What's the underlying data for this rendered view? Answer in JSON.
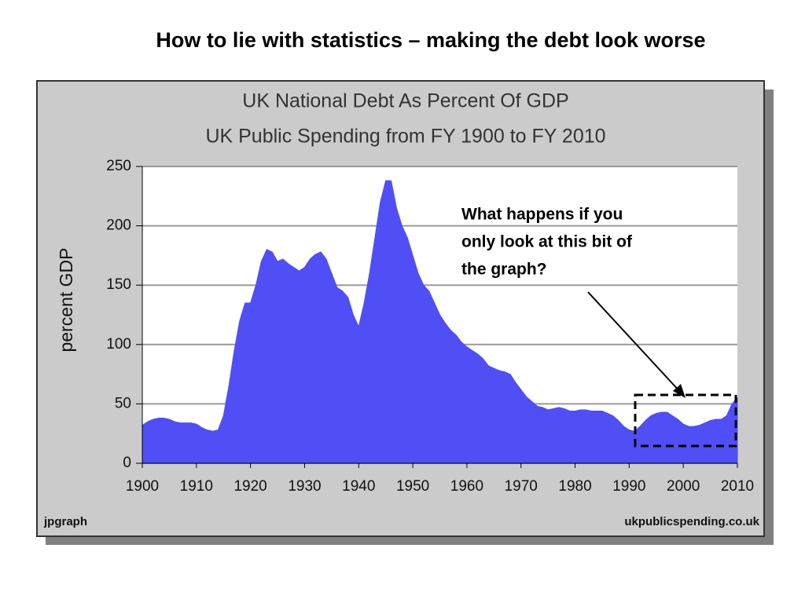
{
  "slide_title": "How to lie with statistics – making the debt look worse",
  "chart_data": {
    "type": "area",
    "title": "UK National Debt As Percent Of GDP",
    "subtitle": "UK Public Spending from FY 1900 to FY 2010",
    "y_label": "percent GDP",
    "credit_left": "jpgraph",
    "credit_right": "ukpublicspending.co.uk",
    "annotation": [
      "What happens if you",
      "only look at this bit of",
      "the graph?"
    ],
    "color": "#4f4ff5",
    "grid": true,
    "x": [
      1900,
      1901,
      1902,
      1903,
      1904,
      1905,
      1906,
      1907,
      1908,
      1909,
      1910,
      1911,
      1912,
      1913,
      1914,
      1915,
      1916,
      1917,
      1918,
      1919,
      1920,
      1921,
      1922,
      1923,
      1924,
      1925,
      1926,
      1927,
      1928,
      1929,
      1930,
      1931,
      1932,
      1933,
      1934,
      1935,
      1936,
      1937,
      1938,
      1939,
      1940,
      1941,
      1942,
      1943,
      1944,
      1945,
      1946,
      1947,
      1948,
      1949,
      1950,
      1951,
      1952,
      1953,
      1954,
      1955,
      1956,
      1957,
      1958,
      1959,
      1960,
      1961,
      1962,
      1963,
      1964,
      1965,
      1966,
      1967,
      1968,
      1969,
      1970,
      1971,
      1972,
      1973,
      1974,
      1975,
      1976,
      1977,
      1978,
      1979,
      1980,
      1981,
      1982,
      1983,
      1984,
      1985,
      1986,
      1987,
      1988,
      1989,
      1990,
      1991,
      1992,
      1993,
      1994,
      1995,
      1996,
      1997,
      1998,
      1999,
      2000,
      2001,
      2002,
      2003,
      2004,
      2005,
      2006,
      2007,
      2008,
      2009,
      2010
    ],
    "values": [
      32,
      35,
      37,
      38,
      38,
      37,
      35,
      34,
      34,
      34,
      33,
      30,
      28,
      27,
      28,
      40,
      65,
      95,
      120,
      135,
      135,
      150,
      170,
      180,
      178,
      170,
      172,
      168,
      165,
      162,
      165,
      172,
      176,
      178,
      172,
      160,
      148,
      145,
      140,
      125,
      115,
      135,
      160,
      190,
      220,
      238,
      238,
      215,
      200,
      190,
      175,
      160,
      150,
      145,
      135,
      125,
      118,
      112,
      108,
      102,
      98,
      95,
      92,
      88,
      82,
      80,
      78,
      77,
      75,
      68,
      62,
      56,
      52,
      48,
      47,
      45,
      46,
      47,
      46,
      44,
      44,
      45,
      45,
      44,
      44,
      44,
      42,
      40,
      36,
      31,
      28,
      27,
      31,
      36,
      40,
      42,
      43,
      43,
      40,
      37,
      33,
      31,
      31,
      32,
      34,
      36,
      37,
      37,
      40,
      50,
      55
    ],
    "xlim": [
      1900,
      2010
    ],
    "xticks": [
      1900,
      1910,
      1920,
      1930,
      1940,
      1950,
      1960,
      1970,
      1980,
      1990,
      2000,
      2010
    ],
    "ylim": [
      0,
      250
    ],
    "yticks": [
      0,
      50,
      100,
      150,
      200,
      250
    ]
  }
}
